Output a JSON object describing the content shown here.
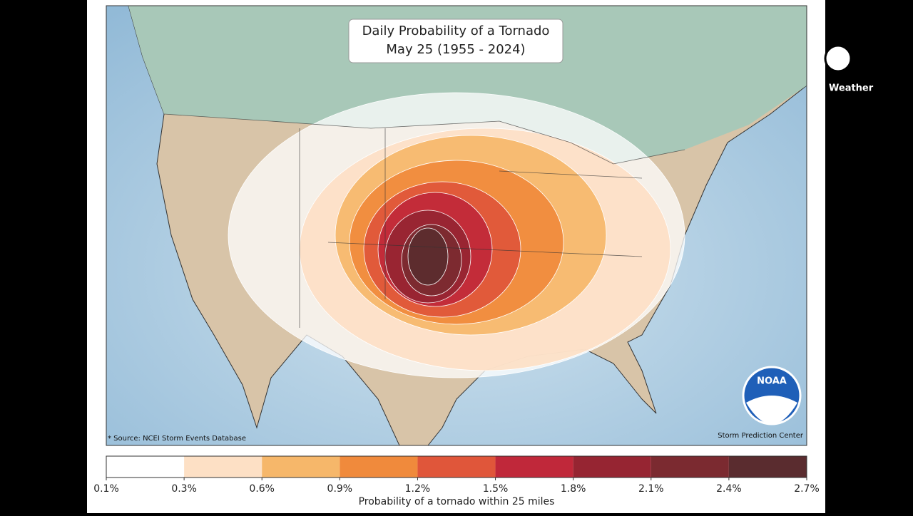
{
  "title": {
    "line1": "Daily Probability of a Tornado",
    "line2": "May 25 (1955 - 2024)"
  },
  "source": "* Source: NCEI Storm Events Database",
  "credit": "Storm Prediction Center",
  "logo": "NOAA",
  "brand": "Weather",
  "colorbar": {
    "title": "Probability of a tornado within 25 miles",
    "ticks": [
      {
        "value": 0.1,
        "label": "0.1%"
      },
      {
        "value": 0.3,
        "label": "0.3%"
      },
      {
        "value": 0.6,
        "label": "0.6%"
      },
      {
        "value": 0.9,
        "label": "0.9%"
      },
      {
        "value": 1.2,
        "label": "1.2%"
      },
      {
        "value": 1.5,
        "label": "1.5%"
      },
      {
        "value": 1.8,
        "label": "1.8%"
      },
      {
        "value": 2.1,
        "label": "2.1%"
      },
      {
        "value": 2.4,
        "label": "2.4%"
      },
      {
        "value": 2.7,
        "label": "2.7%"
      }
    ],
    "colors": [
      "#ffffff",
      "#fde0c5",
      "#f6b76a",
      "#f08a3c",
      "#e0563a",
      "#c0283a",
      "#962532",
      "#7b2a30",
      "#5a2c2f"
    ]
  }
}
